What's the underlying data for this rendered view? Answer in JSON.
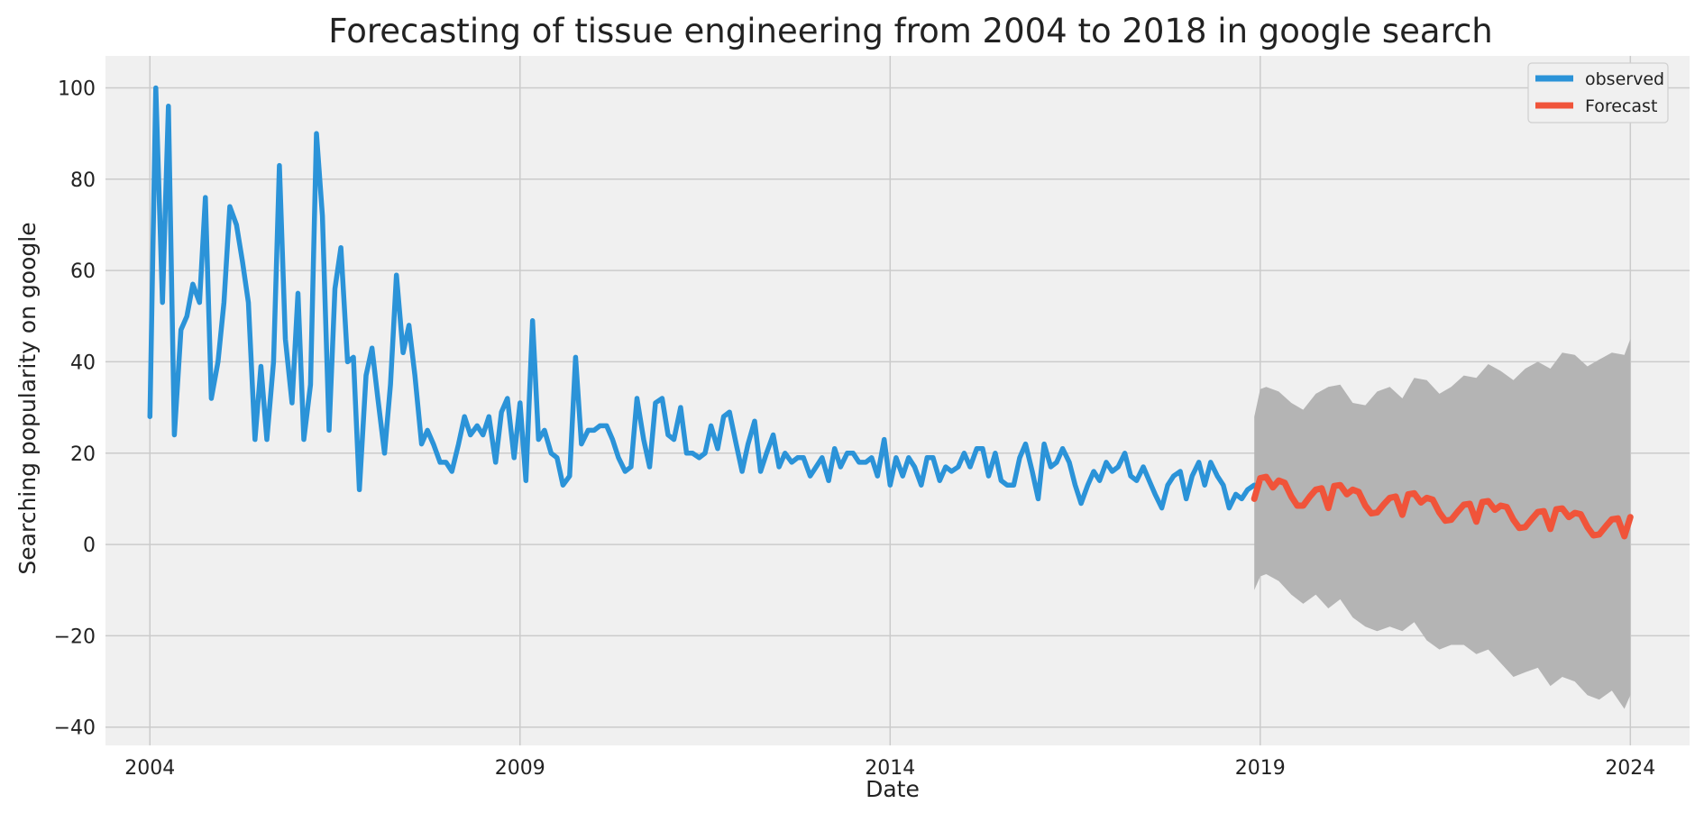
{
  "chart_data": {
    "type": "line",
    "title": "Forecasting of tissue engineering from 2004 to 2018 in google search",
    "xlabel": "Date",
    "ylabel": "Searching popularity on google",
    "xlim": [
      2003.4,
      2024.8
    ],
    "ylim": [
      -44,
      107
    ],
    "x_ticks": [
      2004,
      2009,
      2014,
      2019,
      2024
    ],
    "x_tick_labels": [
      "2004",
      "2009",
      "2014",
      "2019",
      "2024"
    ],
    "y_ticks": [
      -40,
      -20,
      0,
      20,
      40,
      60,
      80,
      100
    ],
    "y_tick_labels": [
      "−40",
      "−20",
      "0",
      "20",
      "40",
      "60",
      "80",
      "100"
    ],
    "grid": true,
    "legend_position": "top-right",
    "legend": [
      "observed",
      "Forecast"
    ],
    "colors": {
      "observed": "#2b93d8",
      "forecast": "#f0543a",
      "confidence_band": "#b4b4b4",
      "background": "#f0f0f0",
      "grid": "#cbcbcb"
    },
    "series": [
      {
        "name": "observed",
        "points": [
          [
            2004.0,
            28
          ],
          [
            2004.08,
            100
          ],
          [
            2004.17,
            53
          ],
          [
            2004.25,
            96
          ],
          [
            2004.33,
            24
          ],
          [
            2004.42,
            47
          ],
          [
            2004.5,
            50
          ],
          [
            2004.58,
            57
          ],
          [
            2004.67,
            53
          ],
          [
            2004.75,
            76
          ],
          [
            2004.83,
            32
          ],
          [
            2004.92,
            40
          ],
          [
            2005.0,
            53
          ],
          [
            2005.08,
            74
          ],
          [
            2005.17,
            70
          ],
          [
            2005.25,
            62
          ],
          [
            2005.33,
            53
          ],
          [
            2005.42,
            23
          ],
          [
            2005.5,
            39
          ],
          [
            2005.58,
            23
          ],
          [
            2005.67,
            40
          ],
          [
            2005.75,
            83
          ],
          [
            2005.83,
            45
          ],
          [
            2005.92,
            31
          ],
          [
            2006.0,
            55
          ],
          [
            2006.08,
            23
          ],
          [
            2006.17,
            35
          ],
          [
            2006.25,
            90
          ],
          [
            2006.33,
            72
          ],
          [
            2006.42,
            25
          ],
          [
            2006.5,
            56
          ],
          [
            2006.58,
            65
          ],
          [
            2006.67,
            40
          ],
          [
            2006.75,
            41
          ],
          [
            2006.83,
            12
          ],
          [
            2006.92,
            37
          ],
          [
            2007.0,
            43
          ],
          [
            2007.08,
            32
          ],
          [
            2007.17,
            20
          ],
          [
            2007.25,
            35
          ],
          [
            2007.33,
            59
          ],
          [
            2007.42,
            42
          ],
          [
            2007.5,
            48
          ],
          [
            2007.58,
            37
          ],
          [
            2007.67,
            22
          ],
          [
            2007.75,
            25
          ],
          [
            2007.83,
            22
          ],
          [
            2007.92,
            18
          ],
          [
            2008.0,
            18
          ],
          [
            2008.08,
            16
          ],
          [
            2008.17,
            22
          ],
          [
            2008.25,
            28
          ],
          [
            2008.33,
            24
          ],
          [
            2008.42,
            26
          ],
          [
            2008.5,
            24
          ],
          [
            2008.58,
            28
          ],
          [
            2008.67,
            18
          ],
          [
            2008.75,
            29
          ],
          [
            2008.83,
            32
          ],
          [
            2008.92,
            19
          ],
          [
            2009.0,
            31
          ],
          [
            2009.08,
            14
          ],
          [
            2009.17,
            49
          ],
          [
            2009.25,
            23
          ],
          [
            2009.33,
            25
          ],
          [
            2009.42,
            20
          ],
          [
            2009.5,
            19
          ],
          [
            2009.58,
            13
          ],
          [
            2009.67,
            15
          ],
          [
            2009.75,
            41
          ],
          [
            2009.83,
            22
          ],
          [
            2009.92,
            25
          ],
          [
            2010.0,
            25
          ],
          [
            2010.08,
            26
          ],
          [
            2010.17,
            26
          ],
          [
            2010.25,
            23
          ],
          [
            2010.33,
            19
          ],
          [
            2010.42,
            16
          ],
          [
            2010.5,
            17
          ],
          [
            2010.58,
            32
          ],
          [
            2010.67,
            23
          ],
          [
            2010.75,
            17
          ],
          [
            2010.83,
            31
          ],
          [
            2010.92,
            32
          ],
          [
            2011.0,
            24
          ],
          [
            2011.08,
            23
          ],
          [
            2011.17,
            30
          ],
          [
            2011.25,
            20
          ],
          [
            2011.33,
            20
          ],
          [
            2011.42,
            19
          ],
          [
            2011.5,
            20
          ],
          [
            2011.58,
            26
          ],
          [
            2011.67,
            21
          ],
          [
            2011.75,
            28
          ],
          [
            2011.83,
            29
          ],
          [
            2011.92,
            22
          ],
          [
            2012.0,
            16
          ],
          [
            2012.08,
            22
          ],
          [
            2012.17,
            27
          ],
          [
            2012.25,
            16
          ],
          [
            2012.33,
            20
          ],
          [
            2012.42,
            24
          ],
          [
            2012.5,
            17
          ],
          [
            2012.58,
            20
          ],
          [
            2012.67,
            18
          ],
          [
            2012.75,
            19
          ],
          [
            2012.83,
            19
          ],
          [
            2012.92,
            15
          ],
          [
            2013.0,
            17
          ],
          [
            2013.08,
            19
          ],
          [
            2013.17,
            14
          ],
          [
            2013.25,
            21
          ],
          [
            2013.33,
            17
          ],
          [
            2013.42,
            20
          ],
          [
            2013.5,
            20
          ],
          [
            2013.58,
            18
          ],
          [
            2013.67,
            18
          ],
          [
            2013.75,
            19
          ],
          [
            2013.83,
            15
          ],
          [
            2013.92,
            23
          ],
          [
            2014.0,
            13
          ],
          [
            2014.08,
            19
          ],
          [
            2014.17,
            15
          ],
          [
            2014.25,
            19
          ],
          [
            2014.33,
            17
          ],
          [
            2014.42,
            13
          ],
          [
            2014.5,
            19
          ],
          [
            2014.58,
            19
          ],
          [
            2014.67,
            14
          ],
          [
            2014.75,
            17
          ],
          [
            2014.83,
            16
          ],
          [
            2014.92,
            17
          ],
          [
            2015.0,
            20
          ],
          [
            2015.08,
            17
          ],
          [
            2015.17,
            21
          ],
          [
            2015.25,
            21
          ],
          [
            2015.33,
            15
          ],
          [
            2015.42,
            20
          ],
          [
            2015.5,
            14
          ],
          [
            2015.58,
            13
          ],
          [
            2015.67,
            13
          ],
          [
            2015.75,
            19
          ],
          [
            2015.83,
            22
          ],
          [
            2015.92,
            16
          ],
          [
            2016.0,
            10
          ],
          [
            2016.08,
            22
          ],
          [
            2016.17,
            17
          ],
          [
            2016.25,
            18
          ],
          [
            2016.33,
            21
          ],
          [
            2016.42,
            18
          ],
          [
            2016.5,
            13
          ],
          [
            2016.58,
            9
          ],
          [
            2016.67,
            13
          ],
          [
            2016.75,
            16
          ],
          [
            2016.83,
            14
          ],
          [
            2016.92,
            18
          ],
          [
            2017.0,
            16
          ],
          [
            2017.08,
            17
          ],
          [
            2017.17,
            20
          ],
          [
            2017.25,
            15
          ],
          [
            2017.33,
            14
          ],
          [
            2017.42,
            17
          ],
          [
            2017.5,
            14
          ],
          [
            2017.58,
            11
          ],
          [
            2017.67,
            8
          ],
          [
            2017.75,
            13
          ],
          [
            2017.83,
            15
          ],
          [
            2017.92,
            16
          ],
          [
            2018.0,
            10
          ],
          [
            2018.08,
            15
          ],
          [
            2018.17,
            18
          ],
          [
            2018.25,
            13
          ],
          [
            2018.33,
            18
          ],
          [
            2018.42,
            15
          ],
          [
            2018.5,
            13
          ],
          [
            2018.58,
            8
          ],
          [
            2018.67,
            11
          ],
          [
            2018.75,
            10
          ],
          [
            2018.83,
            12
          ],
          [
            2018.92,
            13
          ]
        ]
      },
      {
        "name": "Forecast",
        "points": [
          [
            2018.92,
            10
          ],
          [
            2019.0,
            14.5
          ],
          [
            2019.08,
            14.8
          ],
          [
            2019.17,
            12.5
          ],
          [
            2019.25,
            14
          ],
          [
            2019.33,
            13.5
          ],
          [
            2019.42,
            10.5
          ],
          [
            2019.5,
            8.5
          ],
          [
            2019.58,
            8.5
          ],
          [
            2019.67,
            10.5
          ],
          [
            2019.75,
            12
          ],
          [
            2019.83,
            12.3
          ],
          [
            2019.92,
            8
          ],
          [
            2020.0,
            12.8
          ],
          [
            2020.08,
            13
          ],
          [
            2020.17,
            11
          ],
          [
            2020.25,
            12
          ],
          [
            2020.33,
            11.5
          ],
          [
            2020.42,
            8.5
          ],
          [
            2020.5,
            6.8
          ],
          [
            2020.58,
            7
          ],
          [
            2020.67,
            8.8
          ],
          [
            2020.75,
            10.2
          ],
          [
            2020.83,
            10.5
          ],
          [
            2020.92,
            6.5
          ],
          [
            2021.0,
            11
          ],
          [
            2021.08,
            11.2
          ],
          [
            2021.17,
            9.2
          ],
          [
            2021.25,
            10.2
          ],
          [
            2021.33,
            9.8
          ],
          [
            2021.42,
            7
          ],
          [
            2021.5,
            5.2
          ],
          [
            2021.58,
            5.4
          ],
          [
            2021.67,
            7.2
          ],
          [
            2021.75,
            8.7
          ],
          [
            2021.83,
            8.9
          ],
          [
            2021.92,
            5
          ],
          [
            2022.0,
            9.3
          ],
          [
            2022.08,
            9.5
          ],
          [
            2022.17,
            7.6
          ],
          [
            2022.25,
            8.5
          ],
          [
            2022.33,
            8.2
          ],
          [
            2022.42,
            5.4
          ],
          [
            2022.5,
            3.6
          ],
          [
            2022.58,
            3.8
          ],
          [
            2022.67,
            5.6
          ],
          [
            2022.75,
            7.1
          ],
          [
            2022.83,
            7.3
          ],
          [
            2022.92,
            3.4
          ],
          [
            2023.0,
            7.7
          ],
          [
            2023.08,
            7.9
          ],
          [
            2023.17,
            6
          ],
          [
            2023.25,
            6.9
          ],
          [
            2023.33,
            6.6
          ],
          [
            2023.42,
            3.8
          ],
          [
            2023.5,
            2
          ],
          [
            2023.58,
            2.2
          ],
          [
            2023.67,
            4
          ],
          [
            2023.75,
            5.5
          ],
          [
            2023.83,
            5.7
          ],
          [
            2023.92,
            1.8
          ],
          [
            2024.0,
            6
          ]
        ]
      }
    ],
    "confidence_interval": {
      "name": "forecast confidence band",
      "x": [
        2018.92,
        2019.0,
        2019.08,
        2019.25,
        2019.42,
        2019.58,
        2019.75,
        2019.92,
        2020.08,
        2020.25,
        2020.42,
        2020.58,
        2020.75,
        2020.92,
        2021.08,
        2021.25,
        2021.42,
        2021.58,
        2021.75,
        2021.92,
        2022.08,
        2022.25,
        2022.42,
        2022.58,
        2022.75,
        2022.92,
        2023.08,
        2023.25,
        2023.42,
        2023.58,
        2023.75,
        2023.92,
        2024.0
      ],
      "upper": [
        28,
        34,
        34.5,
        33.5,
        31,
        29.5,
        33,
        34.5,
        35,
        31,
        30.5,
        33.5,
        34.5,
        32,
        36.5,
        36,
        33,
        34.5,
        37,
        36.5,
        39.5,
        38,
        36,
        38.5,
        40,
        38.5,
        42,
        41.5,
        39,
        40.5,
        42,
        41.5,
        45
      ],
      "lower": [
        -10,
        -7,
        -6.5,
        -8,
        -11,
        -13,
        -11,
        -14,
        -12,
        -16,
        -18,
        -19,
        -18,
        -19,
        -17,
        -21,
        -23,
        -22,
        -22,
        -24,
        -23,
        -26,
        -29,
        -28,
        -27,
        -31,
        -29,
        -30,
        -33,
        -34,
        -32,
        -36,
        -33
      ]
    }
  }
}
